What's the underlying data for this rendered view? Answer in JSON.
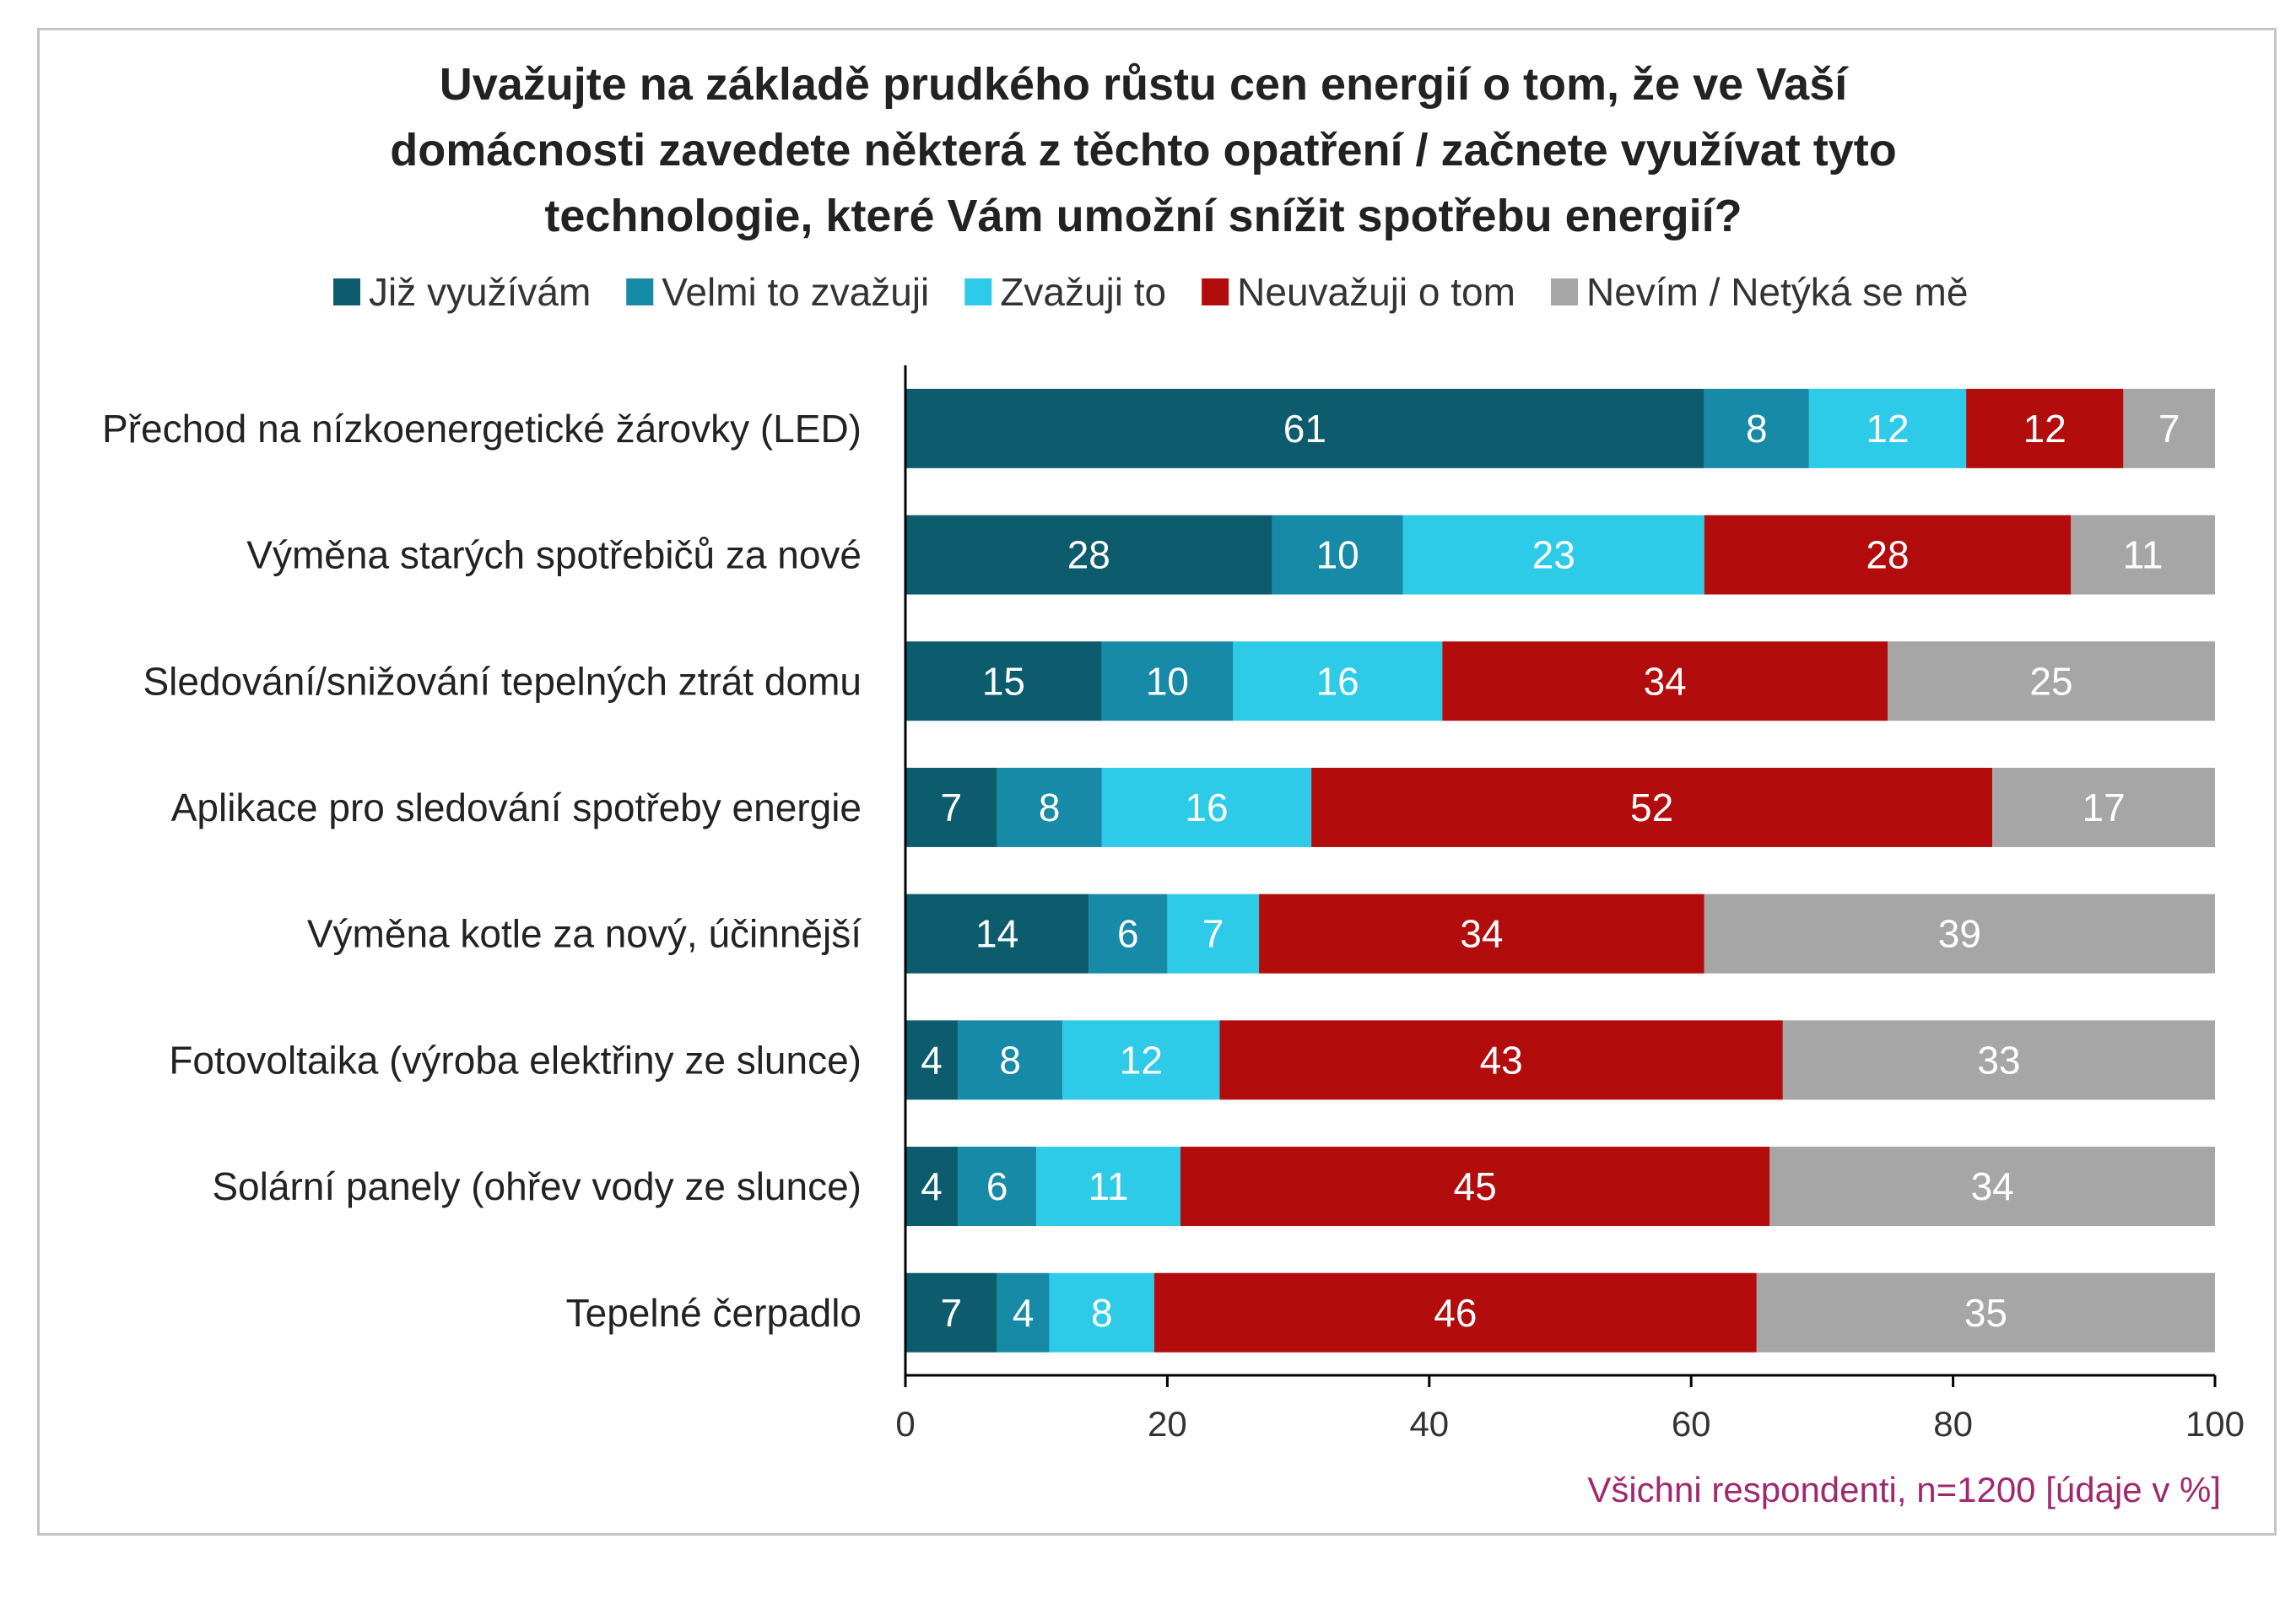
{
  "chart_data": {
    "type": "bar",
    "orientation": "horizontal",
    "stacked": true,
    "title_lines": [
      "Uvažujte na základě prudkého růstu cen energií o tom, že ve Vaší",
      "domácnosti zavedete některá z těchto opatření / začnete využívat tyto",
      "technologie, které Vám umožní snížit spotřebu energií?"
    ],
    "categories": [
      "Přechod na nízkoenergetické žárovky (LED)",
      "Výměna starých spotřebičů za nové",
      "Sledování/snižování tepelných ztrát domu",
      "Aplikace pro sledování spotřeby energie",
      "Výměna kotle za nový, účinnější",
      "Fotovoltaika (výroba elektřiny ze slunce)",
      "Solární panely (ohřev vody ze slunce)",
      "Tepelné čerpadlo"
    ],
    "series": [
      {
        "name": "Již využívám",
        "color": "#0d5c6e",
        "values": [
          61,
          28,
          15,
          7,
          14,
          4,
          4,
          7
        ]
      },
      {
        "name": "Velmi to zvažuji",
        "color": "#168aa6",
        "values": [
          8,
          10,
          10,
          8,
          6,
          8,
          6,
          4
        ]
      },
      {
        "name": "Zvažuji to",
        "color": "#2ecbe8",
        "values": [
          12,
          23,
          16,
          16,
          7,
          12,
          11,
          8
        ]
      },
      {
        "name": "Neuvažuji o tom",
        "color": "#b30c0c",
        "values": [
          12,
          28,
          34,
          52,
          34,
          43,
          45,
          46
        ]
      },
      {
        "name": "Nevím / Netýká se mě",
        "color": "#a6a6a6",
        "values": [
          7,
          11,
          25,
          17,
          39,
          33,
          34,
          35
        ]
      }
    ],
    "xlim": [
      0,
      100
    ],
    "xticks": [
      0,
      20,
      40,
      60,
      80,
      100
    ],
    "xlabel": "",
    "ylabel": "",
    "grid": false,
    "legend_position": "top",
    "footnote": "Všichni respondenti, n=1200 [údaje v %]",
    "footnote_color": "#a0286e"
  }
}
